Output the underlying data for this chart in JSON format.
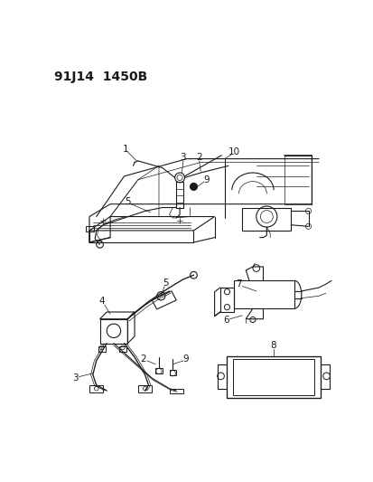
{
  "title_part1": "91J14",
  "title_part2": "1450B",
  "bg_color": "#ffffff",
  "line_color": "#1a1a1a",
  "title_fontsize": 10,
  "label_fontsize": 7.5,
  "fig_width": 4.14,
  "fig_height": 5.33,
  "dpi": 100
}
